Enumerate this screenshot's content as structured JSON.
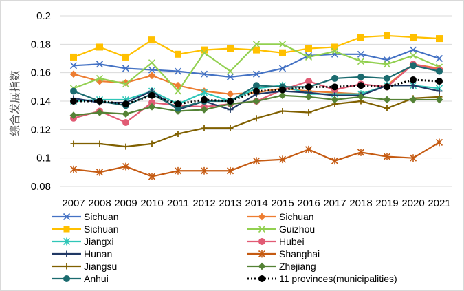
{
  "chart_data": {
    "type": "line",
    "ylabel": "综合发展指数",
    "ylim": [
      0.08,
      0.2
    ],
    "yticks": [
      "0.08",
      "0.1",
      "0.12",
      "0.14",
      "0.16",
      "0.18",
      "0.2"
    ],
    "grid": "horizontal",
    "legend_position": "bottom",
    "x": [
      "2007",
      "2008",
      "2009",
      "2010",
      "2011",
      "2012",
      "2013",
      "2014",
      "2015",
      "2016",
      "2017",
      "2018",
      "2019",
      "2020",
      "2021"
    ],
    "series": [
      {
        "name": "Sichuan",
        "color": "#4472c4",
        "marker": "x",
        "values": [
          0.165,
          0.166,
          0.163,
          0.162,
          0.161,
          0.159,
          0.157,
          0.159,
          0.163,
          0.172,
          0.173,
          0.173,
          0.169,
          0.176,
          0.17
        ]
      },
      {
        "name": "Sichuan",
        "color": "#ed7d31",
        "marker": "diamond",
        "values": [
          0.159,
          0.154,
          0.153,
          0.158,
          0.151,
          0.147,
          0.145,
          0.146,
          0.149,
          0.147,
          0.146,
          0.145,
          0.151,
          0.166,
          0.163
        ]
      },
      {
        "name": "Sichuan",
        "color": "#ffc000",
        "marker": "square",
        "values": [
          0.171,
          0.178,
          0.171,
          0.183,
          0.173,
          0.176,
          0.177,
          0.176,
          0.174,
          0.177,
          0.178,
          0.185,
          0.186,
          0.185,
          0.184
        ]
      },
      {
        "name": "Guizhou",
        "color": "#92d050",
        "marker": "x",
        "values": [
          0.149,
          0.156,
          0.152,
          0.167,
          0.147,
          0.174,
          0.161,
          0.18,
          0.18,
          0.171,
          0.175,
          0.168,
          0.166,
          0.172,
          0.164
        ]
      },
      {
        "name": "Jiangxi",
        "color": "#2fc6b8",
        "marker": "asterisk",
        "values": [
          0.14,
          0.141,
          0.141,
          0.147,
          0.138,
          0.146,
          0.14,
          0.149,
          0.151,
          0.145,
          0.145,
          0.145,
          0.151,
          0.151,
          0.149
        ]
      },
      {
        "name": "Hubei",
        "color": "#e15b74",
        "marker": "circle",
        "values": [
          0.128,
          0.133,
          0.125,
          0.139,
          0.137,
          0.136,
          0.138,
          0.14,
          0.148,
          0.154,
          0.148,
          0.152,
          0.15,
          0.166,
          0.162
        ]
      },
      {
        "name": "Hunan",
        "color": "#203864",
        "marker": "plus",
        "values": [
          0.142,
          0.139,
          0.139,
          0.147,
          0.134,
          0.14,
          0.134,
          0.145,
          0.147,
          0.146,
          0.144,
          0.144,
          0.151,
          0.151,
          0.147
        ]
      },
      {
        "name": "Shanghai",
        "color": "#c55a11",
        "marker": "asterisk",
        "values": [
          0.092,
          0.09,
          0.094,
          0.087,
          0.091,
          0.091,
          0.091,
          0.098,
          0.099,
          0.106,
          0.098,
          0.104,
          0.101,
          0.1,
          0.111
        ]
      },
      {
        "name": "Jiangsu",
        "color": "#806000",
        "marker": "plus",
        "values": [
          0.11,
          0.11,
          0.108,
          0.11,
          0.117,
          0.121,
          0.121,
          0.128,
          0.133,
          0.132,
          0.138,
          0.14,
          0.135,
          0.142,
          0.143
        ]
      },
      {
        "name": "Zhejiang",
        "color": "#548235",
        "marker": "diamond",
        "values": [
          0.13,
          0.132,
          0.131,
          0.136,
          0.133,
          0.134,
          0.138,
          0.14,
          0.144,
          0.143,
          0.141,
          0.143,
          0.141,
          0.141,
          0.141
        ]
      },
      {
        "name": "Anhui",
        "color": "#1b6b6f",
        "marker": "circle",
        "values": [
          0.147,
          0.14,
          0.137,
          0.145,
          0.135,
          0.14,
          0.14,
          0.151,
          0.15,
          0.15,
          0.156,
          0.157,
          0.156,
          0.165,
          0.161
        ]
      },
      {
        "name": "11 provinces(municipalities)",
        "color": "#000000",
        "marker": "circle",
        "dotted": true,
        "values": [
          0.14,
          0.14,
          0.138,
          0.144,
          0.138,
          0.141,
          0.14,
          0.147,
          0.148,
          0.15,
          0.15,
          0.151,
          0.15,
          0.155,
          0.154
        ]
      }
    ]
  }
}
